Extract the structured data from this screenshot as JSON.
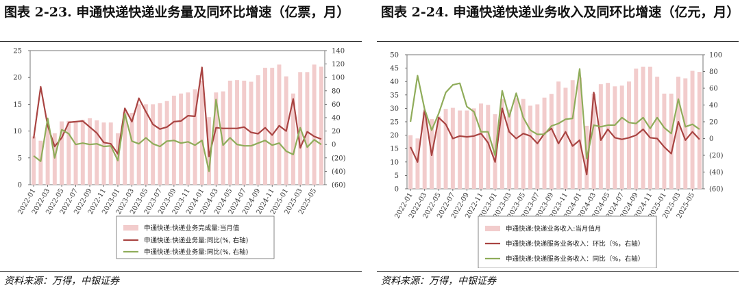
{
  "charts": [
    {
      "title": "图表 2-23. 申通快递快递业务量及同环比增速（亿票，月）",
      "source": "资料来源：万得，中银证券",
      "legend": [
        "申通快递:快递业务完成量:当月值",
        "申通快递:快递业务量:同比(%, 右轴)",
        "申通快递:快递业务量:同比(%, 右轴)"
      ]
    },
    {
      "title": "图表 2-24. 申通快递快递业务收入及同环比增速（亿元，月）",
      "source": "资料来源：万得，中银证券",
      "legend": [
        "申通快递:快递业务收入:当月值月",
        "申通快递:快递服务业务收入：环比（%，右轴）",
        "申通快递:快递服务业务收入：同比（%，右轴）"
      ]
    }
  ],
  "chart_data": [
    {
      "type": "bar",
      "title": "图表 2-23. 申通快递快递业务量及同环比增速（亿票，月）",
      "x_tick_labels": [
        "2022-01",
        "2022-03",
        "2022-05",
        "2022-07",
        "2022-09",
        "2022-11",
        "2023-01",
        "2023-03",
        "2023-05",
        "2023-07",
        "2023-09",
        "2023-11",
        "2024-01",
        "2024-03",
        "2024-05",
        "2024-07",
        "2024-09",
        "2024-11",
        "2025-01",
        "2025-03",
        "2025-05"
      ],
      "categories": [
        "2022-01",
        "2022-02",
        "2022-03",
        "2022-04",
        "2022-05",
        "2022-06",
        "2022-07",
        "2022-08",
        "2022-09",
        "2022-10",
        "2022-11",
        "2022-12",
        "2023-01",
        "2023-02",
        "2023-03",
        "2023-04",
        "2023-05",
        "2023-06",
        "2023-07",
        "2023-08",
        "2023-09",
        "2023-10",
        "2023-11",
        "2023-12",
        "2024-01",
        "2024-02",
        "2024-03",
        "2024-04",
        "2024-05",
        "2024-06",
        "2024-07",
        "2024-08",
        "2024-09",
        "2024-10",
        "2024-11",
        "2024-12",
        "2025-01",
        "2025-02",
        "2025-03",
        "2025-04",
        "2025-05",
        "2025-06"
      ],
      "left_axis": {
        "ylim": [
          0,
          25
        ],
        "ticks": [
          "0",
          "5",
          "10",
          "15",
          "20",
          "25"
        ]
      },
      "right_axis": {
        "ylim": [
          -60,
          140
        ],
        "ticks": [
          "(60)",
          "(40)",
          "(20)",
          "0",
          "20",
          "40",
          "60",
          "80",
          "100",
          "120",
          "140"
        ]
      },
      "series": [
        {
          "name": "申通快递:快递业务完成量:当月值",
          "axis": "left",
          "color": "#f2cccc",
          "values": [
            9.0,
            8.2,
            11.1,
            9.6,
            11.8,
            11.9,
            11.8,
            12.1,
            12.4,
            12.0,
            11.6,
            11.6,
            9.6,
            13.6,
            13.4,
            15.0,
            15.0,
            15.0,
            15.2,
            15.6,
            16.6,
            17.0,
            17.2,
            17.8,
            19.4,
            12.6,
            17.2,
            17.4,
            19.4,
            19.5,
            19.4,
            19.2,
            20.4,
            21.8,
            21.8,
            22.4,
            20.2,
            17.0,
            21.0,
            21.0,
            22.4,
            22.0
          ]
        },
        {
          "name": "申通快递:快递业务量:同比(%, 右轴)",
          "axis": "right",
          "color": "#a94442",
          "values": [
            9,
            86,
            28,
            -3,
            10,
            33,
            34,
            35,
            26,
            17,
            3,
            1,
            -14,
            54,
            34,
            69,
            49,
            30,
            23,
            26,
            34,
            35,
            43,
            42,
            115,
            -18,
            25,
            24,
            24,
            24,
            26,
            18,
            16,
            25,
            14,
            28,
            20,
            68,
            -5,
            19,
            12,
            8
          ]
        },
        {
          "name": "申通快递:快递业务量:同比(%, 右轴)",
          "axis": "right",
          "color": "#8fac5a",
          "values": [
            -17,
            -25,
            39,
            -20,
            22,
            16,
            0,
            2,
            0,
            1,
            -3,
            -2,
            -24,
            46,
            5,
            1,
            10,
            1,
            -3,
            5,
            6,
            2,
            4,
            -1,
            6,
            -40,
            67,
            -1,
            10,
            0,
            -2,
            -2,
            2,
            6,
            -1,
            2,
            -10,
            -15,
            25,
            -4,
            7,
            0
          ]
        }
      ]
    },
    {
      "type": "bar",
      "title": "图表 2-24. 申通快递快递业务收入及同环比增速（亿元，月）",
      "x_tick_labels": [
        "2022-01",
        "2022-03",
        "2022-05",
        "2022-07",
        "2022-09",
        "2022-11",
        "2023-01",
        "2023-03",
        "2023-05",
        "2023-07",
        "2023-09",
        "2023-11",
        "2024-01",
        "2024-03",
        "2024-05",
        "2024-07",
        "2024-09",
        "2024-11",
        "2025-01",
        "2025-03",
        "2025-05"
      ],
      "categories": [
        "2022-01",
        "2022-02",
        "2022-03",
        "2022-04",
        "2022-05",
        "2022-06",
        "2022-07",
        "2022-08",
        "2022-09",
        "2022-10",
        "2022-11",
        "2022-12",
        "2023-01",
        "2023-02",
        "2023-03",
        "2023-04",
        "2023-05",
        "2023-06",
        "2023-07",
        "2023-08",
        "2023-09",
        "2023-10",
        "2023-11",
        "2023-12",
        "2024-01",
        "2024-02",
        "2024-03",
        "2024-04",
        "2024-05",
        "2024-06",
        "2024-07",
        "2024-08",
        "2024-09",
        "2024-10",
        "2024-11",
        "2024-12",
        "2025-01",
        "2025-02",
        "2025-03",
        "2025-04",
        "2025-05",
        "2025-06"
      ],
      "left_axis": {
        "ylim": [
          0,
          50
        ],
        "ticks": [
          "0",
          "5",
          "10",
          "15",
          "20",
          "25",
          "30",
          "35",
          "40",
          "45",
          "50"
        ]
      },
      "right_axis": {
        "ylim": [
          -60,
          100
        ],
        "ticks": [
          "(60)",
          "(40)",
          "(20)",
          "0",
          "20",
          "40",
          "60",
          "80",
          "100"
        ]
      },
      "series": [
        {
          "name": "申通快递:快递业务收入:当月值月",
          "axis": "left",
          "color": "#f2cccc",
          "values": [
            20,
            18.8,
            28.5,
            26,
            27,
            29.8,
            30.2,
            29.2,
            29.2,
            30,
            31.8,
            31.3,
            27.8,
            33.5,
            29.5,
            33.8,
            33.5,
            31,
            31.5,
            34,
            35.4,
            40,
            37.7,
            40.5,
            41.5,
            23.5,
            35.5,
            39,
            39.5,
            38.2,
            38.5,
            40,
            44.8,
            45.5,
            45.5,
            41.8,
            35.5,
            35.5,
            41.8,
            41.2,
            44,
            43.6
          ]
        },
        {
          "name": "申通快递:快递服务业务收入：环比（%，右轴）",
          "axis": "right",
          "color": "#a94442",
          "values": [
            -10,
            -28,
            35,
            -20,
            25,
            17,
            0,
            3,
            2,
            3,
            6,
            -5,
            -28,
            36,
            8,
            0,
            6,
            3,
            -6,
            6,
            12,
            -6,
            8,
            -9,
            -2,
            -43,
            55,
            -2,
            11,
            1,
            -1,
            1,
            4,
            11,
            1,
            0,
            -10,
            -18,
            20,
            -2,
            8,
            -1
          ]
        },
        {
          "name": "申通快递:快递服务业务收入：同比（%，右轴）",
          "axis": "right",
          "color": "#8fac5a",
          "values": [
            20,
            75,
            35,
            10,
            30,
            55,
            64,
            66,
            38,
            32,
            8,
            8,
            -20,
            57,
            26,
            54,
            25,
            10,
            5,
            5,
            15,
            18,
            23,
            24,
            83,
            -24,
            16,
            14,
            16,
            16,
            25,
            19,
            18,
            25,
            12,
            25,
            13,
            6,
            47,
            14,
            17,
            11
          ]
        }
      ]
    }
  ]
}
